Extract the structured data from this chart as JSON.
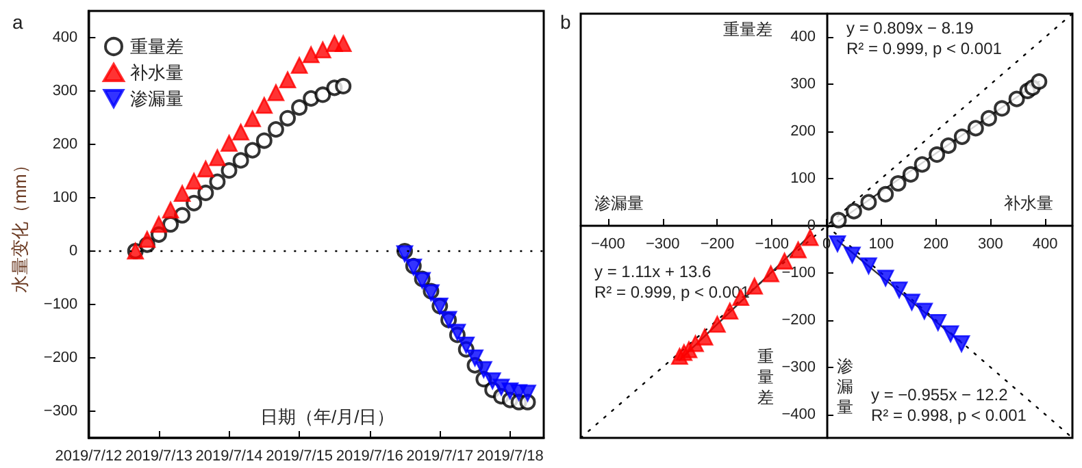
{
  "chart_data": [
    {
      "type": "scatter",
      "title": "a",
      "xlabel": "日期（年/月/日）",
      "ylabel": "水量变化（mm）",
      "legend": "top left",
      "grid": false,
      "xlim": [
        "2019-07-12",
        "2019-07-18T11:30"
      ],
      "xticks": [
        {
          "value": "2019-07-12",
          "label": "2019/7/12"
        },
        {
          "value": "2019-07-13",
          "label": "2019/7/13"
        },
        {
          "value": "2019-07-14",
          "label": "2019/7/14"
        },
        {
          "value": "2019-07-15",
          "label": "2019/7/15"
        },
        {
          "value": "2019-07-16",
          "label": "2019/7/16"
        },
        {
          "value": "2019-07-17",
          "label": "2019/7/17"
        },
        {
          "value": "2019-07-18",
          "label": "2019/7/18"
        }
      ],
      "ylim": [
        -350,
        450
      ],
      "yticks": [
        {
          "value": -300,
          "label": "−300"
        },
        {
          "value": -200,
          "label": "−200"
        },
        {
          "value": -100,
          "label": "−100"
        },
        0,
        100,
        200,
        300,
        400
      ],
      "ref_lines": [
        {
          "axis": "y",
          "value": 0,
          "line_style": "dotted",
          "color": "#000000"
        }
      ],
      "series": [
        {
          "name": "重量差",
          "color": "#000000",
          "marker": "circle",
          "x": [
            "2019-07-12T16:00",
            "2019-07-12T20:00",
            "2019-07-13T00:00",
            "2019-07-13T04:00",
            "2019-07-13T08:00",
            "2019-07-13T12:00",
            "2019-07-13T16:00",
            "2019-07-13T20:00",
            "2019-07-14T00:00",
            "2019-07-14T04:00",
            "2019-07-14T08:00",
            "2019-07-14T12:00",
            "2019-07-14T16:00",
            "2019-07-14T20:00",
            "2019-07-15T00:00",
            "2019-07-15T04:00",
            "2019-07-15T08:00",
            "2019-07-15T12:00",
            "2019-07-15T15:00",
            "2019-07-16T12:00",
            "2019-07-16T15:00",
            "2019-07-16T18:00",
            "2019-07-16T21:00",
            "2019-07-17T00:00",
            "2019-07-17T03:00",
            "2019-07-17T06:00",
            "2019-07-17T09:00",
            "2019-07-17T12:00",
            "2019-07-17T15:00",
            "2019-07-17T18:00",
            "2019-07-17T21:00",
            "2019-07-18T00:00",
            "2019-07-18T03:00",
            "2019-07-18T06:00"
          ],
          "values": [
            0,
            12,
            31,
            50,
            67,
            90,
            109,
            130,
            151,
            170,
            189,
            207,
            228,
            249,
            269,
            286,
            293,
            306,
            309,
            0,
            -28,
            -52,
            -75,
            -103,
            -129,
            -157,
            -184,
            -214,
            -240,
            -260,
            -272,
            -279,
            -283,
            -283
          ]
        },
        {
          "name": "补水量",
          "color": "#ff0000",
          "marker": "triangle",
          "x": [
            "2019-07-12T16:00",
            "2019-07-12T20:00",
            "2019-07-13T00:00",
            "2019-07-13T04:00",
            "2019-07-13T08:00",
            "2019-07-13T12:00",
            "2019-07-13T16:00",
            "2019-07-13T20:00",
            "2019-07-14T00:00",
            "2019-07-14T04:00",
            "2019-07-14T08:00",
            "2019-07-14T12:00",
            "2019-07-14T16:00",
            "2019-07-14T20:00",
            "2019-07-15T00:00",
            "2019-07-15T04:00",
            "2019-07-15T08:00",
            "2019-07-15T12:00",
            "2019-07-15T15:00"
          ],
          "values": [
            0,
            22,
            50,
            77,
            108,
            131,
            154,
            175,
            202,
            223,
            248,
            273,
            297,
            321,
            348,
            368,
            377,
            389,
            389
          ]
        },
        {
          "name": "渗漏量",
          "color": "#0000ff",
          "marker": "triangle-down",
          "x": [
            "2019-07-16T12:00",
            "2019-07-16T15:00",
            "2019-07-16T18:00",
            "2019-07-16T21:00",
            "2019-07-17T00:00",
            "2019-07-17T03:00",
            "2019-07-17T06:00",
            "2019-07-17T09:00",
            "2019-07-17T12:00",
            "2019-07-17T15:00",
            "2019-07-17T18:00",
            "2019-07-17T21:00",
            "2019-07-18T00:00",
            "2019-07-18T03:00",
            "2019-07-18T06:00"
          ],
          "values": [
            -5,
            -30,
            -55,
            -78,
            -103,
            -128,
            -152,
            -176,
            -200,
            -222,
            -243,
            -255,
            -262,
            -265,
            -266
          ]
        }
      ]
    },
    {
      "type": "scatter",
      "title": "b",
      "grid": false,
      "xlim": [
        -450,
        450
      ],
      "ylim": [
        -450,
        450
      ],
      "xticks": [
        {
          "value": -400,
          "label": "−400"
        },
        {
          "value": -300,
          "label": "−300"
        },
        {
          "value": -200,
          "label": "−200"
        },
        {
          "value": -100,
          "label": "−100"
        },
        0,
        100,
        200,
        300,
        400
      ],
      "yticks": [
        {
          "value": -400,
          "label": "−400"
        },
        {
          "value": -300,
          "label": "−300"
        },
        {
          "value": -200,
          "label": "−200"
        },
        {
          "value": -100,
          "label": "−100"
        },
        0,
        100,
        200,
        300,
        400
      ],
      "annotations": [
        "重量差",
        "渗漏量",
        "补水量",
        "重量差",
        "渗漏量",
        "y = 0.809x − 8.19",
        "R² = 0.999, p < 0.001",
        "y = 1.11x + 13.6",
        "R² = 0.999, p < 0.001",
        "y = −0.955x − 12.2",
        "R² = 0.998, p < 0.001"
      ],
      "series": [
        {
          "type": "line",
          "color": "#000000",
          "marker": "none",
          "line_style": "dotted",
          "x": [
            -450,
            450
          ],
          "values": [
            -450,
            450
          ]
        },
        {
          "type": "line",
          "color": "#000000",
          "marker": "none",
          "line_style": "dotted",
          "x": [
            0,
            450
          ],
          "values": [
            0,
            -450
          ]
        },
        {
          "type": "line",
          "color": "#333333",
          "marker": "none",
          "line_style": "solid",
          "x": [
            22,
            389
          ],
          "values": [
            10,
            306
          ]
        },
        {
          "type": "line",
          "color": "#333333",
          "marker": "none",
          "line_style": "solid",
          "x": [
            -269,
            -30
          ],
          "values": [
            -285,
            -20
          ]
        },
        {
          "type": "line",
          "color": "#333333",
          "marker": "none",
          "line_style": "solid",
          "x": [
            20,
            247
          ],
          "values": [
            -31,
            -248
          ]
        },
        {
          "color": "#000000",
          "marker": "circle",
          "x": [
            22,
            50,
            77,
            108,
            131,
            154,
            175,
            202,
            223,
            248,
            273,
            297,
            321,
            348,
            368,
            377,
            389
          ],
          "values": [
            12,
            31,
            50,
            67,
            90,
            109,
            130,
            151,
            170,
            189,
            207,
            228,
            249,
            269,
            286,
            293,
            306
          ]
        },
        {
          "color": "#ff0000",
          "marker": "triangle",
          "x": [
            -30,
            -52,
            -77,
            -102,
            -132,
            -157,
            -177,
            -200,
            -223,
            -240,
            -252,
            -261,
            -269
          ],
          "values": [
            -25,
            -51,
            -75,
            -102,
            -128,
            -152,
            -181,
            -209,
            -236,
            -250,
            -263,
            -269,
            -277
          ]
        },
        {
          "color": "#0000ff",
          "marker": "triangle-down",
          "x": [
            20,
            47,
            77,
            108,
            133,
            156,
            179,
            204,
            227,
            247
          ],
          "values": [
            -38,
            -62,
            -85,
            -111,
            -136,
            -162,
            -181,
            -205,
            -229,
            -250
          ]
        }
      ]
    }
  ]
}
